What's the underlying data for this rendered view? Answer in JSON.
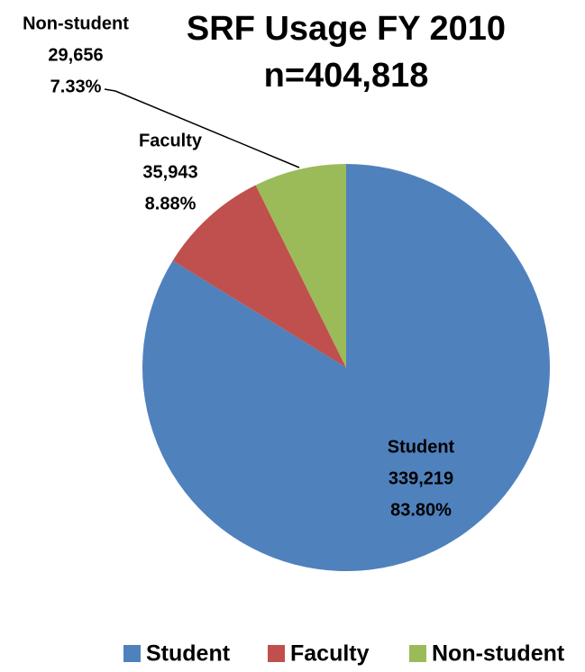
{
  "chart_data": {
    "type": "pie",
    "title": "SRF Usage FY 2010",
    "subtitle": "n=404,818",
    "categories": [
      "Student",
      "Faculty",
      "Non-student"
    ],
    "values": [
      339219,
      35943,
      29656
    ],
    "value_labels": [
      "339,219",
      "35,943",
      "29,656"
    ],
    "percent_labels": [
      "83.80%",
      "8.88%",
      "7.33%"
    ],
    "colors": [
      "#4f81bd",
      "#c0504d",
      "#9bbb59"
    ],
    "legend": "bottom"
  }
}
